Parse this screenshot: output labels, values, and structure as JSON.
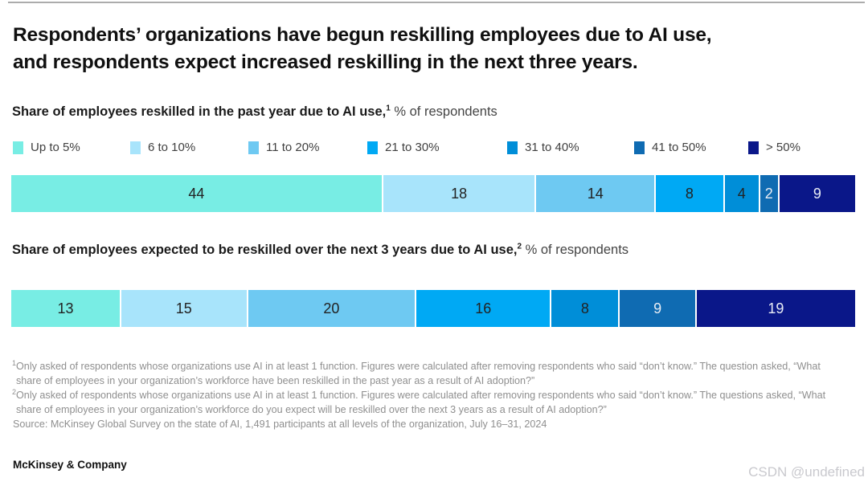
{
  "page": {
    "title_lines": [
      "Respondents’ organizations have begun reskilling employees due to AI use,",
      "and respondents expect increased reskilling in the next three years."
    ],
    "footer_logo": "McKinsey & Company",
    "watermark": "CSDN @undefined"
  },
  "legend": {
    "items": [
      {
        "label": "Up to 5%",
        "color": "#78EDE4",
        "value_text_color": "#222222"
      },
      {
        "label": "6 to 10%",
        "color": "#A8E4FB",
        "value_text_color": "#222222"
      },
      {
        "label": "11 to 20%",
        "color": "#6EC9F2",
        "value_text_color": "#222222"
      },
      {
        "label": "21 to 30%",
        "color": "#00A9F4",
        "value_text_color": "#222222"
      },
      {
        "label": "31 to 40%",
        "color": "#008ED8",
        "value_text_color": "#222222"
      },
      {
        "label": "41 to 50%",
        "color": "#0F6BB2",
        "value_text_color": "#E9EDF5"
      },
      {
        "label": "> 50%",
        "color": "#0A1789",
        "value_text_color": "#E9EDF5"
      }
    ]
  },
  "chart_data": [
    {
      "type": "bar",
      "subtype": "horizontal-stacked-100pct",
      "title_bold": "Share of employees reskilled in the past year due to AI use,",
      "title_sup": "1",
      "title_rest": " % of respondents",
      "categories": [
        "Up to 5%",
        "6 to 10%",
        "11 to 20%",
        "21 to 30%",
        "31 to 40%",
        "41 to 50%",
        "> 50%"
      ],
      "values": [
        44,
        18,
        14,
        8,
        4,
        2,
        9
      ],
      "legend_position": "top"
    },
    {
      "type": "bar",
      "subtype": "horizontal-stacked-100pct",
      "title_bold": "Share of employees expected to be reskilled over the next 3 years due to AI use,",
      "title_sup": "2",
      "title_rest": " % of respondents",
      "categories": [
        "Up to 5%",
        "6 to 10%",
        "11 to 20%",
        "21 to 30%",
        "31 to 40%",
        "41 to 50%",
        "> 50%"
      ],
      "values": [
        13,
        15,
        20,
        16,
        8,
        9,
        19
      ],
      "legend_position": "shared-top"
    }
  ],
  "footnotes": [
    {
      "sup": "1",
      "text": "Only asked of respondents whose organizations use AI in at least 1 function. Figures were calculated after removing respondents who said “don’t know.” The question asked, “What share of employees in your organization’s workforce have been reskilled in the past year as a result of AI adoption?”"
    },
    {
      "sup": "2",
      "text": "Only asked of respondents whose organizations use AI in at least 1 function. Figures were calculated after removing respondents who said “don’t know.” The questions asked, “What share of employees in your organization’s workforce do you expect will be reskilled over the next 3 years as a result of AI adoption?”"
    }
  ],
  "source": "Source: McKinsey Global Survey on the state of AI, 1,491 participants at all levels of the organization, July 16–31, 2024"
}
